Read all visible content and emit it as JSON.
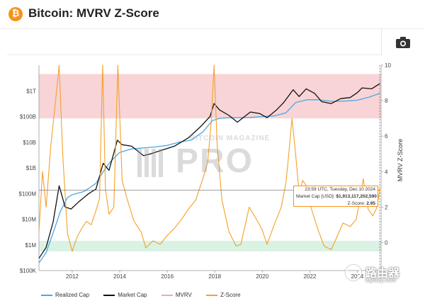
{
  "header": {
    "logo_glyph": "₿",
    "logo_color": "#f7931a",
    "title": "Bitcoin: MVRV Z-Score"
  },
  "toolbar": {
    "camera_icon": "camera-icon"
  },
  "watermark": {
    "line1": "BITCOIN MAGAZINE",
    "line2": "PRO"
  },
  "brand": {
    "cn": "路由器",
    "en": "luyouqi.com"
  },
  "tooltip": {
    "time": "23:59 UTC, Tuesday, Dec 10 2024",
    "market_cap_label": "Market Cap [USD]:",
    "market_cap_value": "$1,913,117,202,590",
    "zscore_label": "Z-Score:",
    "zscore_value": "2.95"
  },
  "chart_data": {
    "type": "line",
    "title": "Bitcoin: MVRV Z-Score",
    "x_ticks": [
      "2012",
      "2014",
      "2016",
      "2018",
      "2020",
      "2022",
      "2024"
    ],
    "x_range": [
      2010.6,
      2025.0
    ],
    "y_left": {
      "scale": "log",
      "range_usd": [
        100000,
        10000000000000
      ],
      "ticks": [
        {
          "label": "$100K",
          "value": 100000
        },
        {
          "label": "$1M",
          "value": 1000000
        },
        {
          "label": "$10M",
          "value": 10000000
        },
        {
          "label": "$100M",
          "value": 100000000
        },
        {
          "label": "$1B",
          "value": 1000000000
        },
        {
          "label": "$10B",
          "value": 10000000000
        },
        {
          "label": "$100B",
          "value": 100000000000
        },
        {
          "label": "$1T",
          "value": 1000000000000
        }
      ]
    },
    "y_right": {
      "label": "MVRV Z-Score",
      "range": [
        -0.7,
        10
      ],
      "ticks": [
        0,
        2,
        4,
        6,
        8,
        10
      ]
    },
    "bands": [
      {
        "name": "overvalued",
        "from": 7.0,
        "to": 9.5,
        "color": "#f6c6c9"
      },
      {
        "name": "undervalued",
        "from": -0.5,
        "to": 0.1,
        "color": "#cdeed9"
      }
    ],
    "series": [
      {
        "name": "Realized Cap",
        "color": "#4aa8e8",
        "axis": "left",
        "x": [
          2010.6,
          2010.9,
          2011.2,
          2011.5,
          2011.8,
          2012.0,
          2012.5,
          2013.0,
          2013.3,
          2013.6,
          2014.0,
          2014.5,
          2015.0,
          2015.5,
          2016.0,
          2016.5,
          2017.0,
          2017.5,
          2017.9,
          2018.2,
          2018.6,
          2019.0,
          2019.5,
          2020.0,
          2020.5,
          2021.0,
          2021.4,
          2021.9,
          2022.3,
          2022.6,
          2023.0,
          2023.5,
          2024.0,
          2024.5,
          2024.95
        ],
        "y": [
          200000,
          500000,
          3000000,
          20000000,
          70000000,
          90000000,
          120000000,
          250000000,
          700000000,
          1700000000,
          4000000000,
          5500000000,
          6000000000,
          6500000000,
          7500000000,
          10000000000,
          12000000000,
          25000000000,
          70000000000,
          85000000000,
          90000000000,
          90000000000,
          92000000000,
          100000000000,
          105000000000,
          140000000000,
          350000000000,
          450000000000,
          450000000000,
          420000000000,
          390000000000,
          400000000000,
          430000000000,
          570000000000,
          800000000000
        ]
      },
      {
        "name": "Market Cap",
        "color": "#111111",
        "axis": "left",
        "x": [
          2010.6,
          2010.9,
          2011.2,
          2011.45,
          2011.7,
          2011.95,
          2012.3,
          2012.7,
          2013.0,
          2013.3,
          2013.55,
          2013.9,
          2014.1,
          2014.5,
          2015.0,
          2015.3,
          2015.8,
          2016.3,
          2016.9,
          2017.4,
          2017.8,
          2017.97,
          2018.2,
          2018.6,
          2018.95,
          2019.5,
          2019.9,
          2020.2,
          2020.6,
          2020.9,
          2021.3,
          2021.55,
          2021.85,
          2022.2,
          2022.5,
          2022.9,
          2023.3,
          2023.7,
          2024.0,
          2024.2,
          2024.6,
          2024.95
        ],
        "y": [
          300000,
          800000,
          8000000,
          200000000,
          30000000,
          25000000,
          50000000,
          100000000,
          150000000,
          1500000000,
          800000000,
          12000000000,
          8000000000,
          7000000000,
          3000000000,
          3500000000,
          5000000000,
          7000000000,
          15000000000,
          40000000000,
          100000000000,
          320000000000,
          180000000000,
          110000000000,
          60000000000,
          150000000000,
          130000000000,
          90000000000,
          180000000000,
          350000000000,
          1100000000000,
          600000000000,
          1200000000000,
          800000000000,
          380000000000,
          320000000000,
          500000000000,
          550000000000,
          850000000000,
          1300000000000,
          1200000000000,
          1910000000000
        ]
      },
      {
        "name": "MVRV",
        "color": "#f3a9ad",
        "axis": "right",
        "legend_only": true,
        "x": [],
        "y": []
      },
      {
        "name": "Z-Score",
        "color": "#f4a12a",
        "axis": "right",
        "x": [
          2010.6,
          2010.75,
          2010.9,
          2011.1,
          2011.3,
          2011.45,
          2011.6,
          2011.8,
          2012.0,
          2012.2,
          2012.4,
          2012.6,
          2012.8,
          2013.0,
          2013.15,
          2013.28,
          2013.4,
          2013.55,
          2013.75,
          2013.92,
          2014.1,
          2014.3,
          2014.6,
          2014.9,
          2015.1,
          2015.4,
          2015.7,
          2016.0,
          2016.3,
          2016.6,
          2016.9,
          2017.2,
          2017.5,
          2017.7,
          2017.85,
          2017.97,
          2018.1,
          2018.3,
          2018.6,
          2018.9,
          2019.1,
          2019.45,
          2019.8,
          2020.0,
          2020.2,
          2020.5,
          2020.8,
          2021.0,
          2021.15,
          2021.25,
          2021.4,
          2021.55,
          2021.7,
          2021.85,
          2022.0,
          2022.3,
          2022.6,
          2022.9,
          2023.1,
          2023.4,
          2023.7,
          2023.95,
          2024.1,
          2024.25,
          2024.45,
          2024.65,
          2024.8,
          2024.95
        ],
        "y": [
          0.6,
          4.0,
          2.0,
          5.5,
          8.0,
          10.0,
          5.0,
          0.5,
          -0.5,
          0.3,
          0.8,
          1.2,
          1.0,
          1.8,
          2.5,
          10.0,
          3.0,
          1.6,
          2.0,
          10.0,
          3.5,
          2.5,
          1.2,
          0.6,
          -0.3,
          0.1,
          -0.1,
          0.4,
          0.8,
          1.3,
          1.9,
          2.4,
          3.6,
          4.5,
          6.8,
          10.0,
          5.5,
          2.4,
          0.6,
          -0.2,
          -0.1,
          2.0,
          1.2,
          0.7,
          -0.1,
          1.0,
          2.0,
          3.4,
          5.5,
          7.0,
          5.0,
          2.8,
          3.5,
          3.2,
          2.2,
          0.9,
          -0.2,
          -0.4,
          0.2,
          1.1,
          0.9,
          1.3,
          2.3,
          3.6,
          1.9,
          1.5,
          1.9,
          2.95
        ]
      }
    ],
    "hover": {
      "x": 2024.94,
      "y_zscore": 2.95
    }
  },
  "legend": [
    {
      "label": "Realized Cap",
      "color": "#4aa8e8"
    },
    {
      "label": "Market Cap",
      "color": "#111111"
    },
    {
      "label": "MVRV",
      "color": "#f3a9ad"
    },
    {
      "label": "Z-Score",
      "color": "#f4a12a"
    }
  ]
}
